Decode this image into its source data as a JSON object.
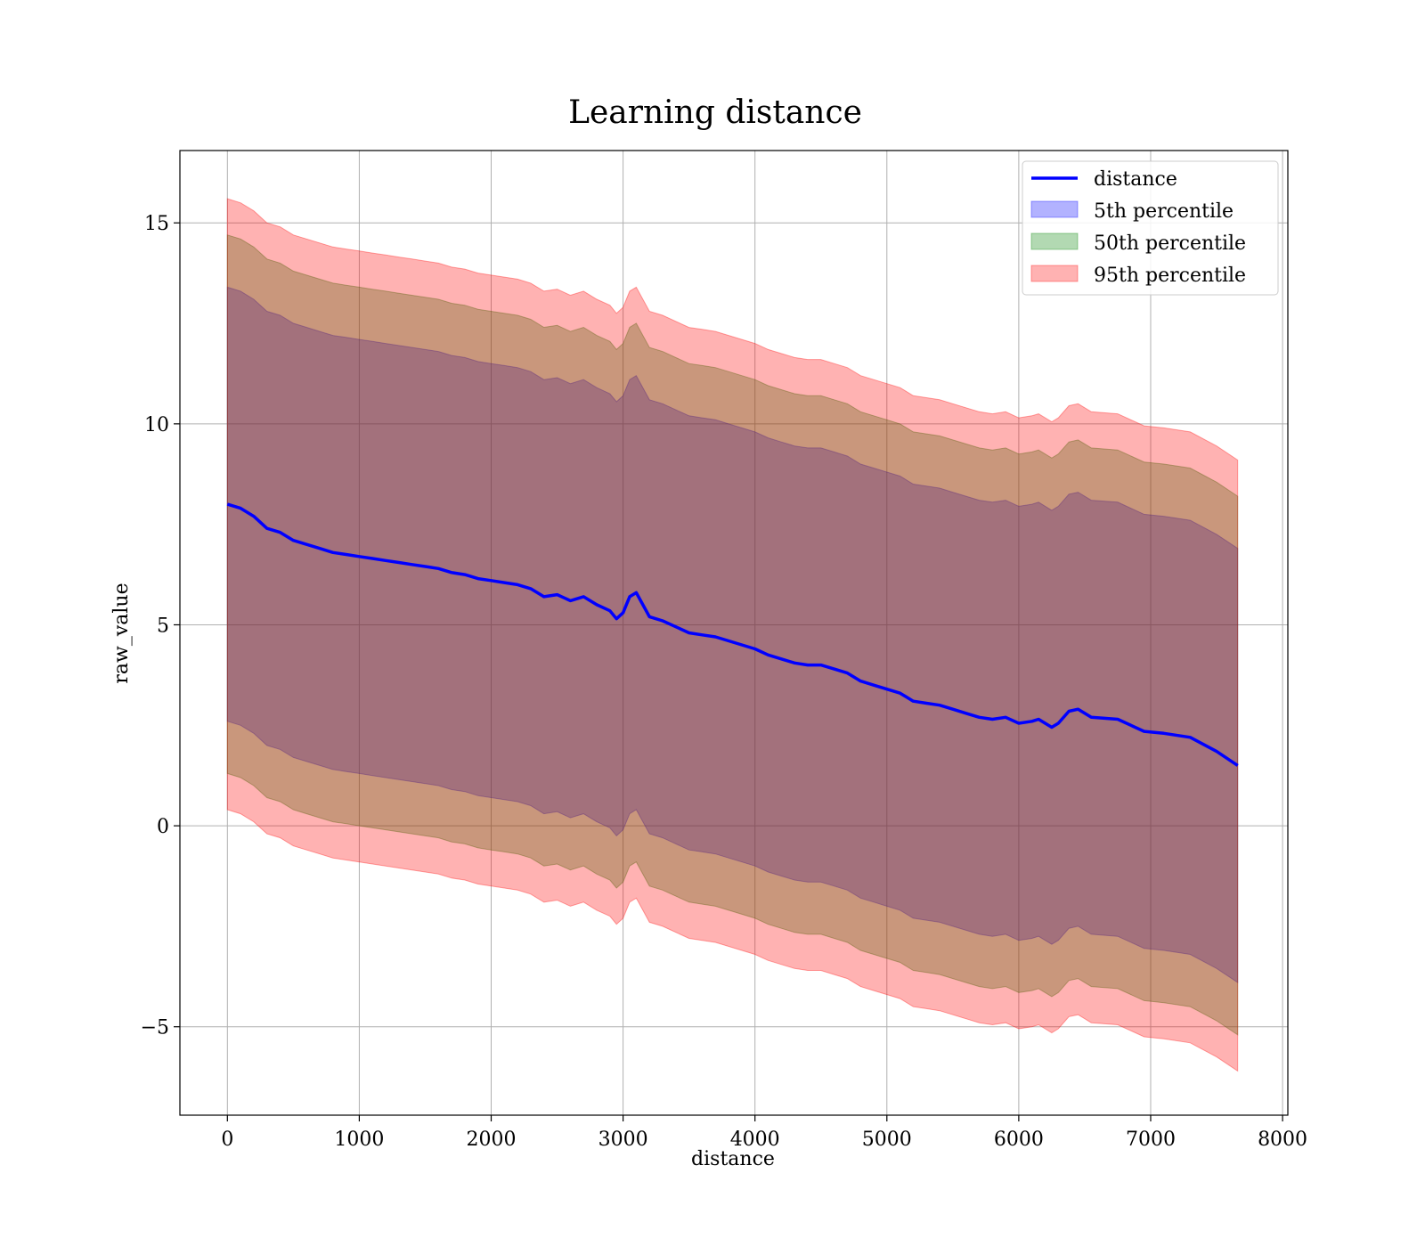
{
  "chart_data": {
    "type": "area",
    "title": "Learning distance",
    "xlabel": "distance",
    "ylabel": "raw_value",
    "xlim": [
      -360,
      8040
    ],
    "ylim": [
      -7.2,
      16.8
    ],
    "grid": true,
    "x_ticks": [
      0,
      1000,
      2000,
      3000,
      4000,
      5000,
      6000,
      7000,
      8000
    ],
    "x_tick_labels": [
      "0",
      "1000",
      "2000",
      "3000",
      "4000",
      "5000",
      "6000",
      "7000",
      "8000"
    ],
    "y_ticks": [
      -5,
      0,
      5,
      10,
      15
    ],
    "y_tick_labels": [
      "−5",
      "0",
      "5",
      "10",
      "15"
    ],
    "legend_position": "top-right",
    "colors": {
      "line": "#0000ff",
      "band_5": "#0000ff",
      "band_50": "#008000",
      "band_95": "#ff0000"
    },
    "x": [
      0,
      100,
      200,
      300,
      400,
      500,
      600,
      700,
      800,
      900,
      1000,
      1100,
      1200,
      1300,
      1400,
      1500,
      1600,
      1700,
      1800,
      1900,
      2000,
      2100,
      2200,
      2300,
      2400,
      2500,
      2600,
      2700,
      2800,
      2900,
      2950,
      3000,
      3050,
      3100,
      3200,
      3300,
      3400,
      3500,
      3600,
      3700,
      3800,
      3900,
      4000,
      4100,
      4200,
      4300,
      4400,
      4500,
      4600,
      4700,
      4800,
      4900,
      5000,
      5100,
      5200,
      5300,
      5400,
      5500,
      5600,
      5700,
      5800,
      5900,
      6000,
      6100,
      6150,
      6250,
      6300,
      6380,
      6450,
      6550,
      6750,
      6950,
      7100,
      7300,
      7500,
      7660
    ],
    "series": [
      {
        "name": "distance",
        "values": [
          8.0,
          7.9,
          7.7,
          7.4,
          7.3,
          7.1,
          7.0,
          6.9,
          6.8,
          6.75,
          6.7,
          6.65,
          6.6,
          6.55,
          6.5,
          6.45,
          6.4,
          6.3,
          6.25,
          6.15,
          6.1,
          6.05,
          6.0,
          5.9,
          5.7,
          5.75,
          5.6,
          5.7,
          5.5,
          5.35,
          5.15,
          5.3,
          5.7,
          5.8,
          5.2,
          5.1,
          4.95,
          4.8,
          4.75,
          4.7,
          4.6,
          4.5,
          4.4,
          4.25,
          4.15,
          4.05,
          4.0,
          4.0,
          3.9,
          3.8,
          3.6,
          3.5,
          3.4,
          3.3,
          3.1,
          3.05,
          3.0,
          2.9,
          2.8,
          2.7,
          2.65,
          2.7,
          2.55,
          2.6,
          2.65,
          2.45,
          2.55,
          2.85,
          2.9,
          2.7,
          2.65,
          2.35,
          2.3,
          2.2,
          1.85,
          1.5
        ]
      },
      {
        "name": "5th percentile",
        "offset": 5.4
      },
      {
        "name": "50th percentile",
        "offset": 6.7
      },
      {
        "name": "95th percentile",
        "offset": 7.6
      }
    ]
  }
}
